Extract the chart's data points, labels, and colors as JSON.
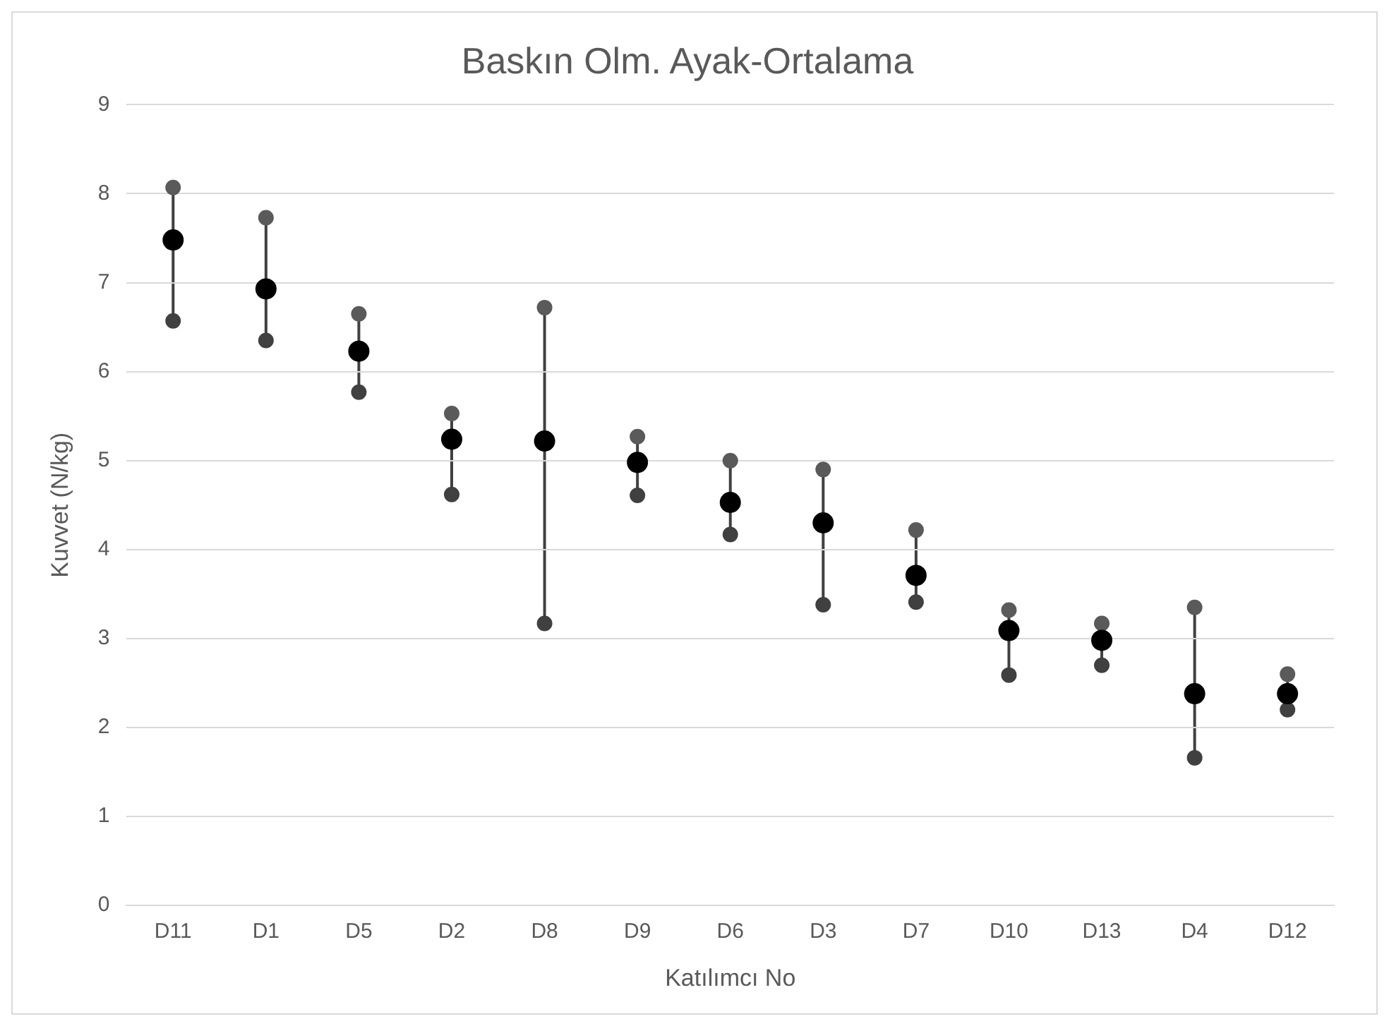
{
  "chart_data": {
    "type": "scatter",
    "title": "Baskın Olm. Ayak-Ortalama",
    "xlabel": "Katılımcı No",
    "ylabel": "Kuvvet (N/kg)",
    "categories": [
      "D11",
      "D1",
      "D5",
      "D2",
      "D8",
      "D9",
      "D6",
      "D3",
      "D7",
      "D10",
      "D13",
      "D4",
      "D12"
    ],
    "series": [
      {
        "color": "#5a5a5a",
        "values": [
          8.07,
          7.73,
          6.65,
          5.53,
          6.72,
          5.27,
          5.0,
          4.9,
          4.22,
          3.32,
          3.17,
          3.35,
          2.6
        ]
      },
      {
        "color": "#404040",
        "values": [
          6.57,
          6.35,
          5.77,
          4.62,
          3.17,
          4.61,
          4.17,
          3.38,
          3.41,
          2.59,
          2.7,
          1.66,
          2.2
        ]
      },
      {
        "color": "#000000",
        "values": [
          7.48,
          6.93,
          6.23,
          5.24,
          5.22,
          4.98,
          4.53,
          4.3,
          3.71,
          3.09,
          2.98,
          2.38,
          2.38
        ]
      }
    ],
    "ylim": [
      0,
      9
    ],
    "yticks": [
      0,
      1,
      2,
      3,
      4,
      5,
      6,
      7,
      8,
      9
    ],
    "grid": "y",
    "legend": false,
    "marker": "circle"
  }
}
